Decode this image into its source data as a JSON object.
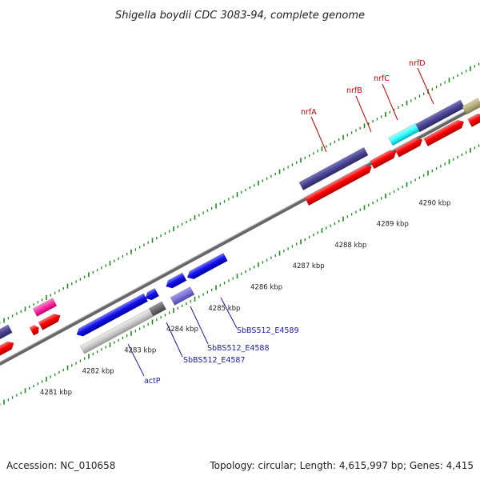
{
  "title": "Shigella boydii CDC 3083-94, complete genome",
  "footer": {
    "accession": "Accession: NC_010658",
    "topology": "Topology: circular; Length: 4,615,997 bp; Genes: 4,415"
  },
  "colors": {
    "forward_gene": "#4a4490",
    "forward_cds": "#ff0000",
    "reverse_cds": "#0000ff",
    "rrna_pink": "#ff33aa",
    "cyan": "#33ffff",
    "olive": "#b5ad78",
    "gray_gene": "#cccccc",
    "tick_green": "#1a8a1a",
    "backbone": "#808080"
  },
  "kbp_labels": [
    "4281 kbp",
    "4282 kbp",
    "4283 kbp",
    "4284 kbp",
    "4285 kbp",
    "4286 kbp",
    "4287 kbp",
    "4288 kbp",
    "4289 kbp",
    "4290 kbp"
  ],
  "forward_labels": [
    "nrfA",
    "nrfB",
    "nrfC",
    "nrfD"
  ],
  "reverse_labels": [
    "actP",
    "SbBS512_E4587",
    "SbBS512_E4588",
    "SbBS512_E4589"
  ]
}
